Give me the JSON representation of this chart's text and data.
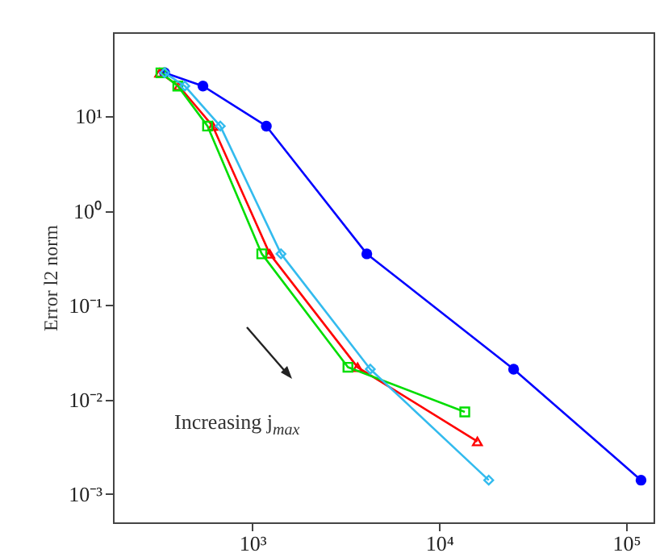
{
  "chart_data": {
    "type": "line",
    "ylabel": "Error l2 norm",
    "log": "xy",
    "grid": false,
    "xlim": [
      180,
      140000
    ],
    "ylim": [
      0.0005,
      78
    ],
    "xticks": [
      {
        "value": 1000,
        "label": "10³"
      },
      {
        "value": 10000,
        "label": "10⁴"
      },
      {
        "value": 100000,
        "label": "10⁵"
      }
    ],
    "yticks": [
      {
        "value": 0.001,
        "label": "10⁻³"
      },
      {
        "value": 0.01,
        "label": "10⁻²"
      },
      {
        "value": 0.1,
        "label": "10⁻¹"
      },
      {
        "value": 1,
        "label": "10⁰"
      },
      {
        "value": 10,
        "label": "10¹"
      }
    ],
    "annotations": [
      "Increasing j$_{max}$"
    ],
    "series": [
      {
        "color": "#0000ff",
        "marker": "circle",
        "x": [
          340,
          545,
          1190,
          4100,
          25000,
          120000
        ],
        "values": [
          29,
          21,
          7.9,
          0.35,
          0.021,
          0.0014
        ]
      },
      {
        "color": "#ff0000",
        "marker": "triangle",
        "x": [
          320,
          405,
          615,
          1240,
          3660,
          16000
        ],
        "values": [
          29,
          21,
          7.9,
          0.35,
          0.022,
          0.0036
        ]
      },
      {
        "color": "#00dd00",
        "marker": "square",
        "x": [
          325,
          400,
          577,
          1125,
          3250,
          13700
        ],
        "values": [
          29,
          21,
          7.9,
          0.35,
          0.022,
          0.0074
        ]
      },
      {
        "color": "#33bbee",
        "marker": "diamond",
        "x": [
          340,
          436,
          675,
          1425,
          4280,
          18400
        ],
        "values": [
          29,
          21,
          7.9,
          0.35,
          0.021,
          0.0014
        ]
      }
    ]
  }
}
